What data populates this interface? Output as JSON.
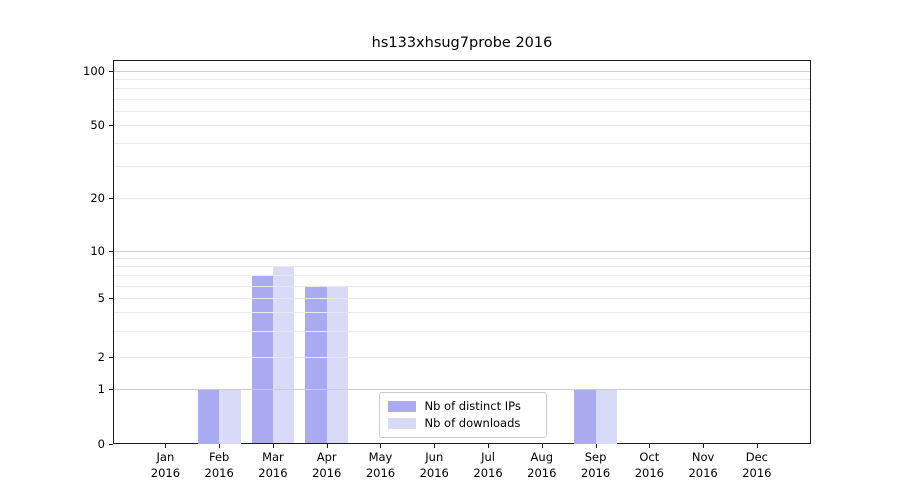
{
  "chart_data": {
    "type": "bar",
    "title": "hs133xhsug7probe 2016",
    "categories": [
      "Jan",
      "Feb",
      "Mar",
      "Apr",
      "May",
      "Jun",
      "Jul",
      "Aug",
      "Sep",
      "Oct",
      "Nov",
      "Dec"
    ],
    "year_label": "2016",
    "series": [
      {
        "name": "Nb of distinct IPs",
        "color": "#aaaaf0",
        "values": [
          0,
          1,
          7,
          6,
          0,
          0,
          0,
          0,
          1,
          0,
          0,
          0
        ]
      },
      {
        "name": "Nb of downloads",
        "color": "#d9d9f8",
        "values": [
          0,
          1,
          8,
          6,
          0,
          0,
          0,
          0,
          1,
          0,
          0,
          0
        ]
      }
    ],
    "xlabel": "",
    "ylabel": "",
    "yscale": "symlog",
    "ylim": [
      0,
      100
    ],
    "ytick_labels": [
      0,
      1,
      2,
      5,
      10,
      20,
      50,
      100
    ],
    "major_grid_values": [
      1,
      10,
      100
    ],
    "minor_grid_values": [
      2,
      3,
      4,
      5,
      6,
      7,
      8,
      9,
      20,
      30,
      40,
      50,
      60,
      70,
      80,
      90
    ],
    "grid": true,
    "legend_position": "lower center",
    "colors": {
      "major_grid": "#cdcdcd",
      "minor_grid": "#e9e9e9",
      "spine": "#1a1a1a",
      "background": "#ffffff"
    }
  }
}
